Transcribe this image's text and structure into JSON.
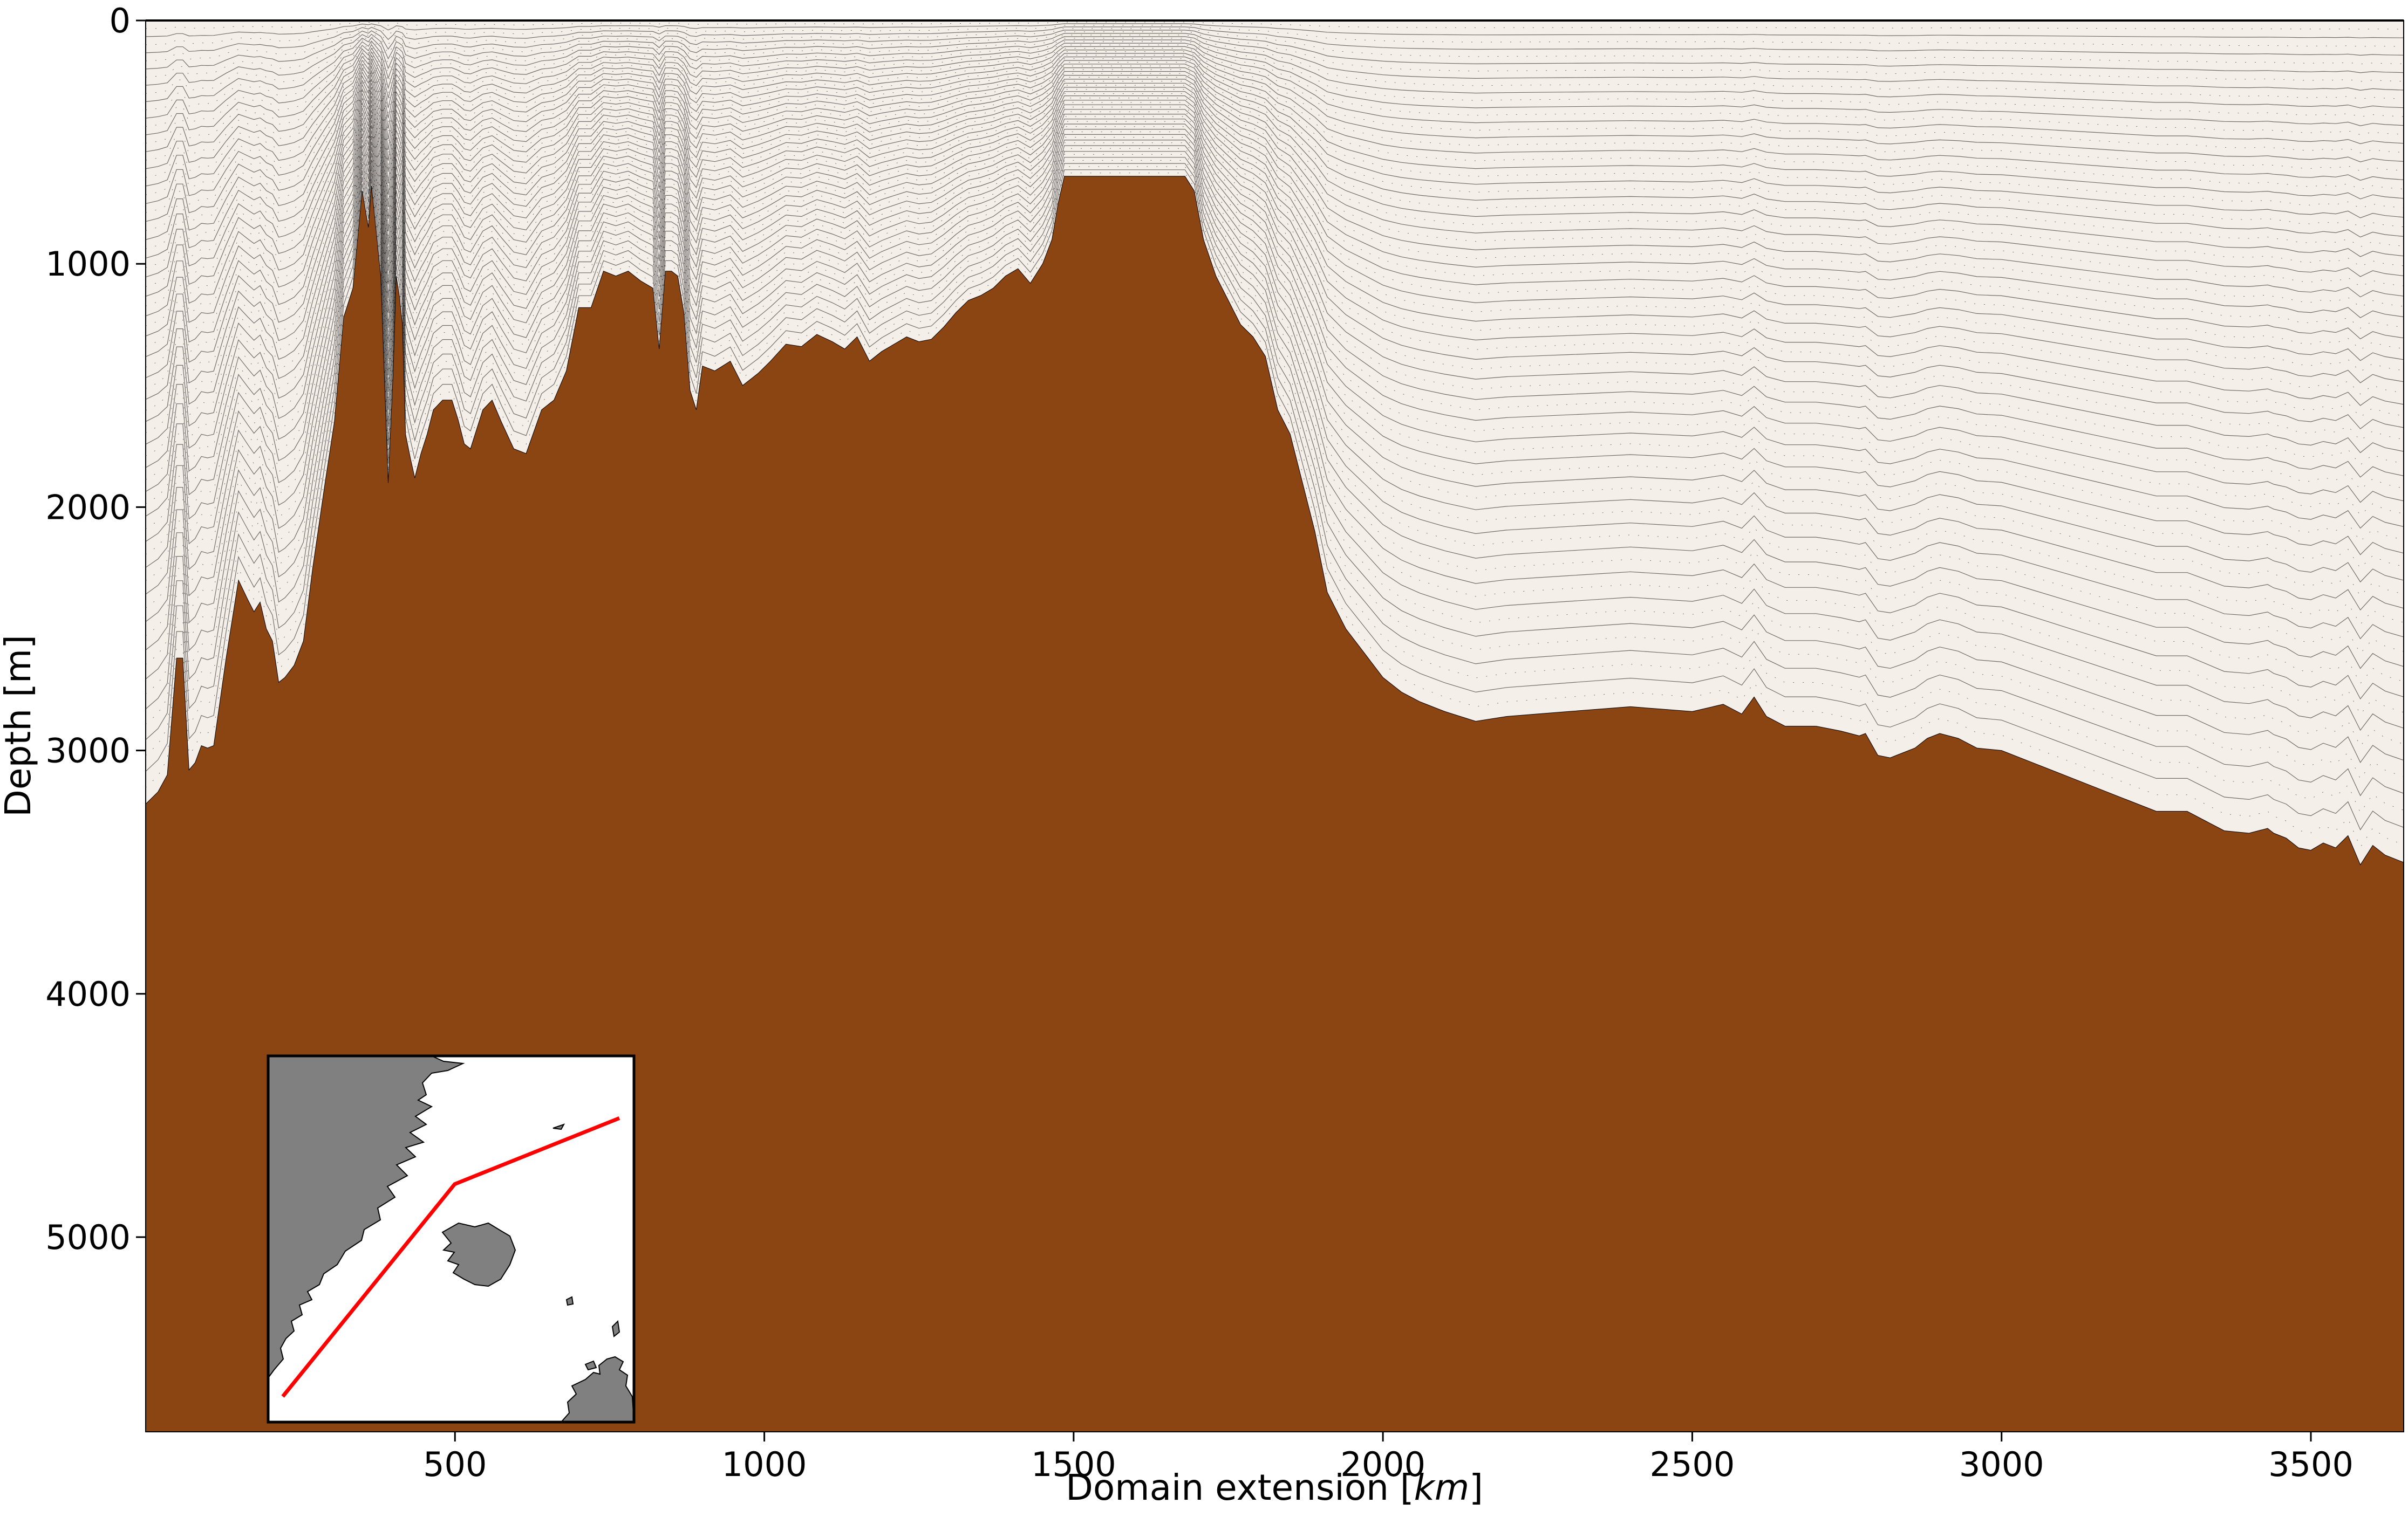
{
  "chart_data": {
    "type": "area",
    "title": "",
    "xlabel": "Domain extension [km]",
    "xlabel_prefix": "Domain extension [",
    "xlabel_unit": "km",
    "xlabel_suffix": "]",
    "ylabel": "Depth [m]",
    "xlim": [
      0,
      3650
    ],
    "ylim": [
      5800,
      0
    ],
    "y_inverted": true,
    "grid": false,
    "legend": "none",
    "x_ticks": [
      500,
      1000,
      1500,
      2000,
      2500,
      3000,
      3500
    ],
    "y_ticks": [
      0,
      1000,
      2000,
      3000,
      4000,
      5000
    ],
    "colors": {
      "seafloor": "#8b4513",
      "water": "#f5efea",
      "grid_lines": "#000000",
      "transect": "#ff0000",
      "land": "#808080"
    },
    "bathymetry": {
      "name": "Seafloor depth",
      "x": [
        0,
        20,
        35,
        50,
        60,
        70,
        80,
        90,
        100,
        110,
        130,
        150,
        165,
        175,
        185,
        195,
        205,
        215,
        225,
        240,
        255,
        270,
        290,
        305,
        320,
        335,
        350,
        360,
        365,
        372,
        380,
        392,
        400,
        405,
        410,
        415,
        420,
        428,
        435,
        445,
        455,
        465,
        480,
        495,
        505,
        515,
        525,
        545,
        560,
        575,
        595,
        615,
        640,
        660,
        680,
        700,
        720,
        740,
        760,
        780,
        800,
        820,
        830,
        840,
        850,
        860,
        870,
        880,
        890,
        900,
        920,
        945,
        965,
        990,
        1010,
        1035,
        1060,
        1085,
        1110,
        1130,
        1150,
        1170,
        1190,
        1210,
        1230,
        1250,
        1270,
        1290,
        1310,
        1330,
        1350,
        1370,
        1390,
        1410,
        1430,
        1450,
        1465,
        1475,
        1485,
        1500,
        1600,
        1680,
        1695,
        1710,
        1730,
        1750,
        1770,
        1790,
        1810,
        1830,
        1850,
        1870,
        1890,
        1910,
        1940,
        1970,
        2000,
        2030,
        2060,
        2100,
        2150,
        2200,
        2250,
        2300,
        2350,
        2400,
        2450,
        2500,
        2550,
        2580,
        2600,
        2620,
        2650,
        2700,
        2740,
        2770,
        2780,
        2800,
        2820,
        2830,
        2840,
        2860,
        2880,
        2900,
        2930,
        2960,
        3000,
        3050,
        3100,
        3150,
        3200,
        3250,
        3300,
        3330,
        3360,
        3400,
        3430,
        3440,
        3460,
        3480,
        3500,
        3520,
        3540,
        3560,
        3580,
        3600,
        3620,
        3650
      ],
      "depth": [
        3220,
        3170,
        3100,
        2620,
        2620,
        3080,
        3050,
        2980,
        2990,
        2980,
        2620,
        2300,
        2380,
        2430,
        2390,
        2500,
        2550,
        2720,
        2700,
        2650,
        2550,
        2250,
        1900,
        1650,
        1220,
        1100,
        700,
        850,
        680,
        850,
        1050,
        1900,
        1450,
        1050,
        1130,
        1250,
        1700,
        1800,
        1880,
        1780,
        1700,
        1600,
        1560,
        1560,
        1640,
        1740,
        1760,
        1600,
        1560,
        1650,
        1760,
        1780,
        1600,
        1560,
        1440,
        1180,
        1180,
        1030,
        1050,
        1030,
        1070,
        1100,
        1350,
        1030,
        1030,
        1050,
        1200,
        1520,
        1600,
        1420,
        1440,
        1400,
        1500,
        1450,
        1400,
        1330,
        1340,
        1290,
        1320,
        1350,
        1300,
        1400,
        1360,
        1330,
        1300,
        1320,
        1310,
        1260,
        1200,
        1150,
        1130,
        1100,
        1050,
        1020,
        1080,
        1000,
        900,
        750,
        640,
        640,
        640,
        640,
        700,
        900,
        1050,
        1150,
        1250,
        1300,
        1380,
        1600,
        1700,
        1900,
        2100,
        2350,
        2500,
        2600,
        2700,
        2760,
        2800,
        2840,
        2880,
        2860,
        2850,
        2840,
        2830,
        2820,
        2830,
        2840,
        2810,
        2850,
        2780,
        2860,
        2900,
        2900,
        2920,
        2940,
        2930,
        3020,
        3030,
        3020,
        3010,
        2990,
        2950,
        2930,
        2950,
        2990,
        3000,
        3050,
        3100,
        3150,
        3200,
        3250,
        3250,
        3290,
        3330,
        3340,
        3320,
        3340,
        3360,
        3400,
        3410,
        3380,
        3400,
        3350,
        3470,
        3390,
        3430,
        3460
      ]
    },
    "inset": {
      "type": "map",
      "transect": {
        "name": "Transect path",
        "points": [
          [
            0.04,
            0.93
          ],
          [
            0.51,
            0.35
          ],
          [
            0.96,
            0.17
          ]
        ]
      }
    }
  }
}
